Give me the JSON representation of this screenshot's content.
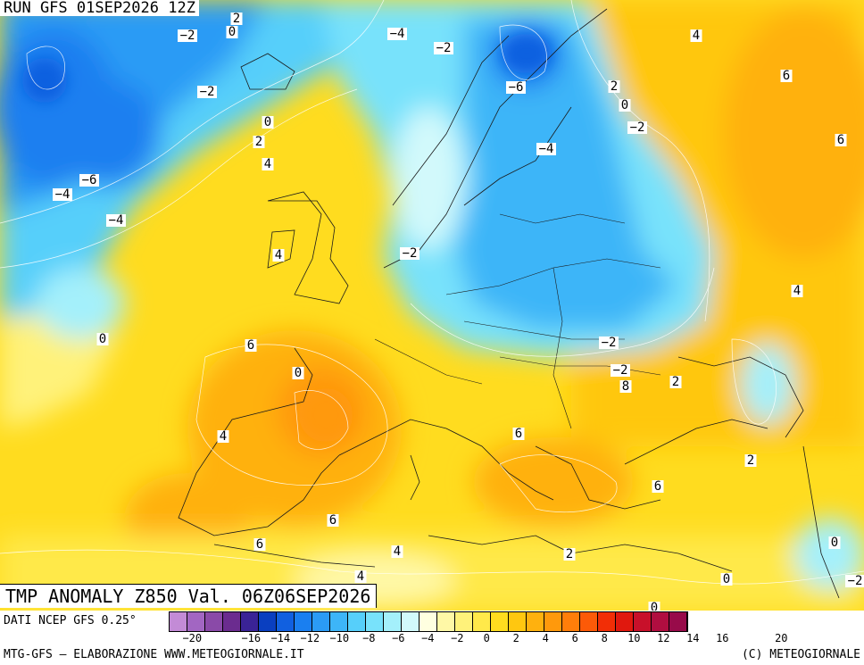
{
  "run_label": "RUN GFS 01SEP2026 12Z",
  "map_title": "TMP ANOMALY Z850 Val. 06Z06SEP2026",
  "footer": {
    "source": "DATI NCEP GFS 0.25°",
    "credit": "MTG-GFS — ELABORAZIONE WWW.METEOGIORNALE.IT",
    "copyright": "(C) METEOGIORNALE"
  },
  "colorbar": {
    "colors": [
      "#c38bd6",
      "#a266c2",
      "#8a4aa8",
      "#6b2c8f",
      "#3a2396",
      "#0a3fc0",
      "#1160e0",
      "#1a7ff0",
      "#2b9bf5",
      "#3db5f8",
      "#56cffa",
      "#78e2fb",
      "#a4f0fb",
      "#d2f9fb",
      "#ffffe0",
      "#fff8a6",
      "#fff27a",
      "#ffe94a",
      "#ffdc1f",
      "#ffc710",
      "#ffb10e",
      "#ff990c",
      "#ff7e0a",
      "#fc5a08",
      "#f22e06",
      "#e0180e",
      "#c8102a",
      "#b00e40",
      "#980b4a"
    ],
    "ticks": [
      "−20",
      "−16",
      "−14",
      "−12",
      "−10",
      "−8",
      "−6",
      "−4",
      "−2",
      "0",
      "2",
      "4",
      "6",
      "8",
      "10",
      "12",
      "14",
      "16",
      "20"
    ]
  },
  "contour_labels": [
    "2",
    "−2",
    "0",
    "−4",
    "−2",
    "4",
    "−2",
    "−6",
    "−4",
    "6",
    "2",
    "0",
    "0",
    "−2",
    "2",
    "6",
    "4",
    "−6",
    "−4",
    "−4",
    "−2",
    "4",
    "−2",
    "4",
    "0",
    "6",
    "−2",
    "0",
    "8",
    "2",
    "4",
    "6",
    "6",
    "2",
    "6",
    "6",
    "4",
    "2",
    "4",
    "0",
    "0",
    "2",
    "−2",
    "0"
  ]
}
